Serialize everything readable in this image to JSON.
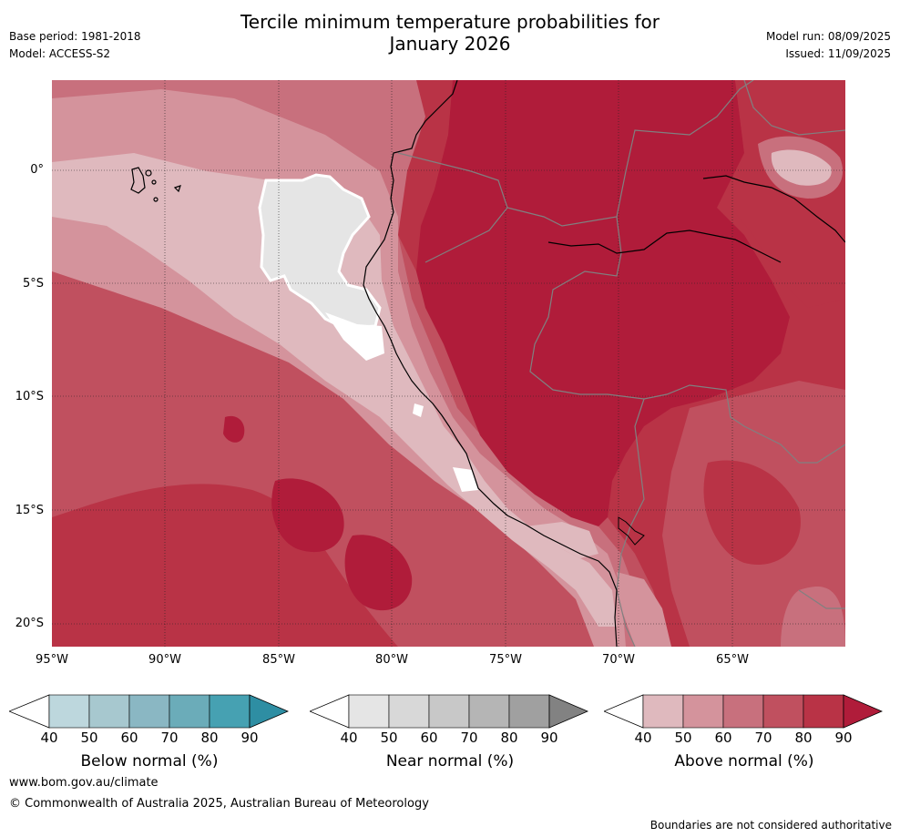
{
  "header": {
    "title_line1": "Tercile minimum temperature probabilities for",
    "title_line2": "January 2026",
    "base_period": "Base period: 1981-2018",
    "model": "Model: ACCESS-S2",
    "model_run": "Model run: 08/09/2025",
    "issued": "Issued: 11/09/2025"
  },
  "map": {
    "lat_ticks": [
      "0°",
      "5°S",
      "10°S",
      "15°S",
      "20°S"
    ],
    "lon_ticks": [
      "95°W",
      "90°W",
      "85°W",
      "80°W",
      "75°W",
      "70°W",
      "65°W"
    ],
    "colors": {
      "above_40": "#dfb9be",
      "above_50": "#d4939c",
      "above_60": "#c8707d",
      "above_70": "#c0505f",
      "above_80": "#b93346",
      "above_90": "#b01c3a",
      "near_50": "#e5e5e5",
      "white": "#ffffff"
    }
  },
  "colorbars": {
    "below": {
      "label": "Below normal (%)",
      "ticks": [
        "40",
        "50",
        "60",
        "70",
        "80",
        "90"
      ],
      "colors": [
        "#bdd7dd",
        "#a7c8cf",
        "#8ab7c3",
        "#6bacb9",
        "#46a1b2",
        "#2e8ea3"
      ]
    },
    "near": {
      "label": "Near normal (%)",
      "ticks": [
        "40",
        "50",
        "60",
        "70",
        "80",
        "90"
      ],
      "colors": [
        "#e5e5e5",
        "#d8d8d8",
        "#c8c8c8",
        "#b5b5b5",
        "#a0a0a0",
        "#828282"
      ]
    },
    "above": {
      "label": "Above normal (%)",
      "ticks": [
        "40",
        "50",
        "60",
        "70",
        "80",
        "90"
      ],
      "colors": [
        "#dfb9be",
        "#d4939c",
        "#c8707d",
        "#c0505f",
        "#b93346",
        "#b01c3a"
      ]
    }
  },
  "footer": {
    "website": "www.bom.gov.au/climate",
    "copyright": "© Commonwealth of Australia 2025, Australian Bureau of Meteorology",
    "disclaimer": "Boundaries are not considered authoritative"
  }
}
